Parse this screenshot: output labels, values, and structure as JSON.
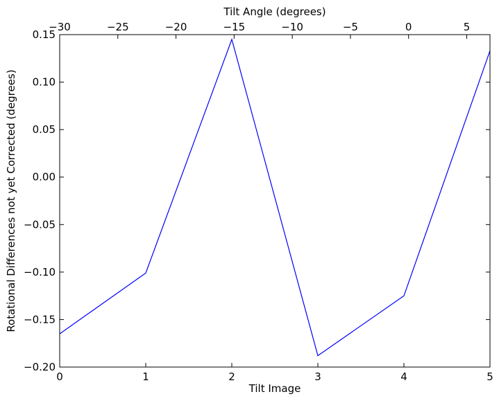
{
  "chart_data": {
    "type": "line",
    "title": "",
    "xlabel": "Tilt Image",
    "ylabel": "Rotational Differences not yet Corrected (degrees)",
    "top_xlabel": "Tilt Angle (degrees)",
    "xlim": [
      0,
      5
    ],
    "ylim": [
      -0.2,
      0.15
    ],
    "top_xlim": [
      -30,
      7
    ],
    "x_ticks": [
      0,
      1,
      2,
      3,
      4,
      5
    ],
    "x_tick_labels": [
      "0",
      "1",
      "2",
      "3",
      "4",
      "5"
    ],
    "y_ticks": [
      -0.2,
      -0.15,
      -0.1,
      -0.05,
      0.0,
      0.05,
      0.1,
      0.15
    ],
    "y_tick_labels": [
      "−0.20",
      "−0.15",
      "−0.10",
      "−0.05",
      "0.00",
      "0.05",
      "0.10",
      "0.15"
    ],
    "top_ticks": [
      -30,
      -25,
      -20,
      -15,
      -10,
      -5,
      0,
      5
    ],
    "top_tick_labels": [
      "−30",
      "−25",
      "−20",
      "−15",
      "−10",
      "−5",
      "0",
      "5"
    ],
    "grid": false,
    "legend": "none",
    "series": [
      {
        "color": "#0000ff",
        "x": [
          0,
          1,
          2,
          3,
          4,
          5
        ],
        "y": [
          -0.165,
          -0.101,
          0.145,
          -0.188,
          -0.125,
          0.133
        ]
      }
    ]
  }
}
